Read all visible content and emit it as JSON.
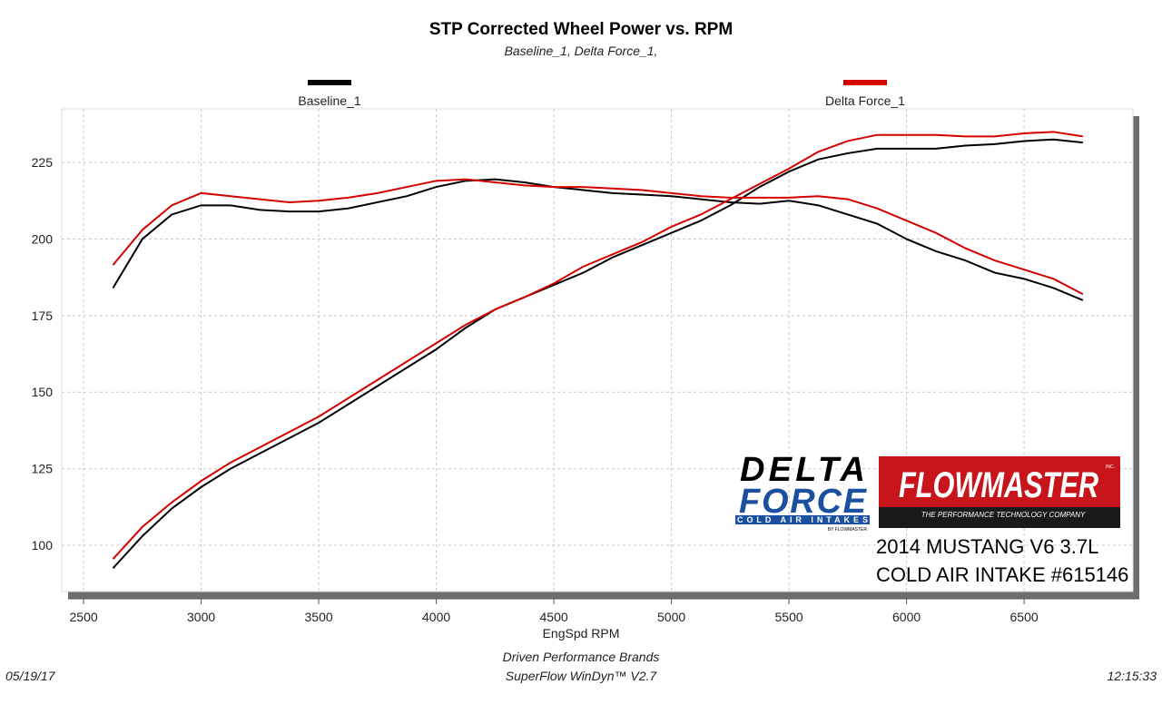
{
  "chart_data": {
    "type": "line",
    "title": "STP Corrected Wheel Power vs. RPM",
    "subtitle": "Baseline_1, Delta Force_1,",
    "x_label": "EngSpd  RPM",
    "x": [
      2625,
      2750,
      2875,
      3000,
      3125,
      3250,
      3375,
      3500,
      3625,
      3750,
      3875,
      4000,
      4125,
      4250,
      4375,
      4500,
      4625,
      4750,
      4875,
      5000,
      5125,
      5250,
      5375,
      5500,
      5625,
      5750,
      5875,
      6000,
      6125,
      6250,
      6375,
      6500,
      6625,
      6750
    ],
    "series": [
      {
        "name": "Baseline_1",
        "color": "#000000",
        "lines": [
          {
            "values": [
              184,
              200,
              208,
              211,
              211,
              209.5,
              209,
              209,
              210,
              212,
              214,
              217,
              219,
              219.5,
              218.5,
              217,
              216,
              215,
              214.5,
              214,
              213,
              212,
              211.5,
              212.5,
              211,
              208,
              205,
              200,
              196,
              193,
              189,
              187,
              184,
              180
            ]
          },
          {
            "values": [
              92.5,
              103,
              112,
              119,
              125,
              130,
              135,
              140,
              146,
              152,
              158,
              164,
              171,
              177,
              181,
              185,
              189,
              194,
              198,
              202,
              206,
              211,
              217,
              222,
              226,
              228,
              229.5,
              229.5,
              229.5,
              230.5,
              231,
              232,
              232.5,
              231.5
            ]
          }
        ]
      },
      {
        "name": "Delta Force_1",
        "color": "#d40000",
        "lines": [
          {
            "values": [
              191.5,
              203,
              211,
              215,
              214,
              213,
              212,
              212.5,
              213.5,
              215,
              217,
              219,
              219.5,
              218.5,
              217.5,
              217,
              217,
              216.5,
              216,
              215,
              214,
              213.5,
              213.5,
              213.5,
              214,
              213,
              210,
              206,
              202,
              197,
              193,
              190,
              187,
              182
            ]
          },
          {
            "values": [
              95.5,
              106,
              114,
              121,
              127,
              132,
              137,
              142,
              148,
              154,
              160,
              166,
              172,
              177,
              181,
              185.5,
              191,
              195,
              199,
              204,
              208,
              213,
              218,
              223,
              228.5,
              232,
              234,
              234,
              234,
              233.5,
              233.5,
              234.5,
              235,
              233.5
            ]
          }
        ]
      }
    ],
    "xlim": [
      2407,
      6963
    ],
    "ylim": [
      84.9,
      242.5
    ],
    "xticks": [
      2500,
      3000,
      3500,
      4000,
      4500,
      5000,
      5500,
      6000,
      6500
    ],
    "yticks": [
      100,
      125,
      150,
      175,
      200,
      225
    ],
    "grid": true,
    "footer": {
      "company": "Driven Performance Brands",
      "software": "SuperFlow WinDyn™  V2.7",
      "date": "05/19/17",
      "time": "12:15:33"
    },
    "logo": {
      "delta": "DELTA",
      "force": "FORCE",
      "tagline": "COLD AIR INTAKES",
      "by": "BY FLOWMASTER",
      "brand": "FLOWMASTER",
      "inc": "INC.",
      "brand_tagline": "THE PERFORMANCE TECHNOLOGY COMPANY",
      "line1": "2014 MUSTANG V6 3.7L",
      "line2": "COLD AIR INTAKE #615146"
    }
  }
}
